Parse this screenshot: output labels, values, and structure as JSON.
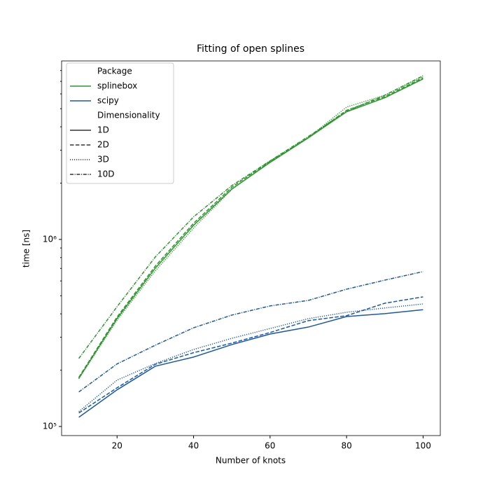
{
  "chart_data": {
    "type": "line",
    "title": "Fitting of open splines",
    "xlabel": "Number of knots",
    "ylabel": "time [ns]",
    "x": [
      10,
      20,
      30,
      40,
      50,
      60,
      70,
      80,
      90,
      100
    ],
    "xlim": [
      5.5,
      104.5
    ],
    "xticks": [
      20,
      40,
      60,
      80,
      100
    ],
    "ylim": [
      89400,
      9000000
    ],
    "yscale": "log",
    "yticks": [
      {
        "value": 100000,
        "label": "10⁵"
      },
      {
        "value": 1000000,
        "label": "10⁶"
      }
    ],
    "yminorticks": [
      200000,
      300000,
      400000,
      500000,
      600000,
      700000,
      800000,
      900000,
      2000000,
      3000000,
      4000000,
      5000000,
      6000000,
      7000000,
      8000000
    ],
    "legend": {
      "loc": "upper left",
      "hue_title": "Package",
      "style_title": "Dimensionality"
    },
    "styles": [
      {
        "name": "1D",
        "dash": "none"
      },
      {
        "name": "2D",
        "dash": "5.5,2.4"
      },
      {
        "name": "3D",
        "dash": "1.2,1.8"
      },
      {
        "name": "10D",
        "dash": "5,1.6,1.2,1.6"
      }
    ],
    "series": [
      {
        "name": "splinebox",
        "color": "#2e962e",
        "values": [
          [
            181000,
            378000,
            702000,
            1190000,
            1860000,
            2580000,
            3490000,
            4810000,
            5720000,
            7210000
          ],
          [
            183000,
            385000,
            720000,
            1220000,
            1900000,
            2620000,
            3500000,
            4900000,
            5800000,
            7300000
          ],
          [
            180000,
            370000,
            680000,
            1150000,
            1850000,
            2600000,
            3500000,
            5100000,
            5900000,
            7400000
          ],
          [
            231000,
            437000,
            806000,
            1320000,
            1940000,
            2630000,
            3550000,
            4850000,
            5900000,
            7500000
          ]
        ]
      },
      {
        "name": "scipy",
        "color": "#1a58a8",
        "values": [
          [
            112000,
            157000,
            210000,
            235000,
            274000,
            312000,
            340000,
            387000,
            401000,
            421000
          ],
          [
            118000,
            161000,
            215000,
            248000,
            279000,
            318000,
            368000,
            391000,
            456000,
            493000
          ],
          [
            120000,
            177000,
            217000,
            258000,
            296000,
            334000,
            377000,
            408000,
            430000,
            452000
          ],
          [
            153000,
            216000,
            272000,
            337000,
            394000,
            441000,
            472000,
            542000,
            606000,
            673000
          ]
        ]
      }
    ]
  }
}
